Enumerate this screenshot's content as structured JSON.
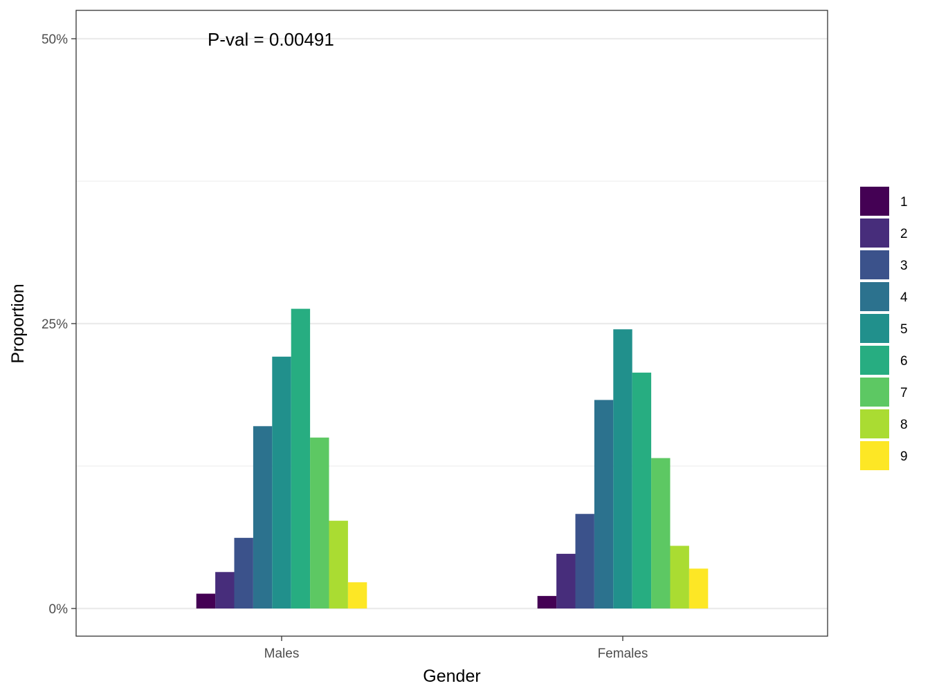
{
  "chart_data": {
    "type": "bar",
    "title": "",
    "xlabel": "Gender",
    "ylabel": "Proportion",
    "categories": [
      "Males",
      "Females"
    ],
    "ylim": [
      -0.024,
      0.5
    ],
    "y_ticks": [
      0,
      0.25,
      0.5
    ],
    "y_tick_labels": [
      "0%",
      "25%",
      "50%"
    ],
    "grid": true,
    "legend_position": "right",
    "annotation": "P-val = 0.00491",
    "series": [
      {
        "name": "1",
        "color": "#440154",
        "values": [
          0.013,
          0.011
        ]
      },
      {
        "name": "2",
        "color": "#472D7B",
        "values": [
          0.032,
          0.048
        ]
      },
      {
        "name": "3",
        "color": "#3B528B",
        "values": [
          0.062,
          0.083
        ]
      },
      {
        "name": "4",
        "color": "#2C728E",
        "values": [
          0.16,
          0.183
        ]
      },
      {
        "name": "5",
        "color": "#21908C",
        "values": [
          0.221,
          0.245
        ]
      },
      {
        "name": "6",
        "color": "#27AD81",
        "values": [
          0.263,
          0.207
        ]
      },
      {
        "name": "7",
        "color": "#5DC863",
        "values": [
          0.15,
          0.132
        ]
      },
      {
        "name": "8",
        "color": "#AADC32",
        "values": [
          0.077,
          0.055
        ]
      },
      {
        "name": "9",
        "color": "#FDE725",
        "values": [
          0.023,
          0.035
        ]
      }
    ]
  }
}
